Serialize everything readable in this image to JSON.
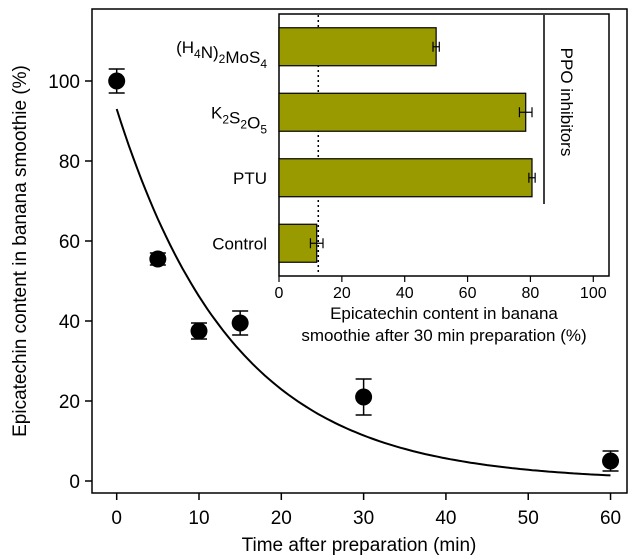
{
  "chart_data": [
    {
      "type": "scatter",
      "xlabel": "Time after preparation (min)",
      "ylabel": "Epicatechin content in banana smoothie (%)",
      "xlim": [
        -3,
        62
      ],
      "ylim": [
        -3,
        118
      ],
      "xticks": [
        0,
        10,
        20,
        30,
        40,
        50,
        60
      ],
      "yticks": [
        0,
        20,
        40,
        60,
        80,
        100
      ],
      "points": [
        {
          "x": 0,
          "y": 100,
          "err": 3
        },
        {
          "x": 5,
          "y": 55.5,
          "err": 1.5
        },
        {
          "x": 10,
          "y": 37.5,
          "err": 2
        },
        {
          "x": 15,
          "y": 39.5,
          "err": 3
        },
        {
          "x": 30,
          "y": 21,
          "err": 4.5
        },
        {
          "x": 60,
          "y": 5,
          "err": 2.5
        }
      ],
      "fit": {
        "kind": "exponential_decay",
        "a": 93,
        "k": 0.07,
        "x_range": [
          0,
          60
        ]
      }
    },
    {
      "type": "bar",
      "orientation": "horizontal",
      "categories": [
        "(H4N)2MoS4",
        "K2S2O5",
        "PTU",
        "Control"
      ],
      "category_labels": [
        [
          {
            "t": "(H"
          },
          {
            "t": "4",
            "sub": true
          },
          {
            "t": "N)"
          },
          {
            "t": "2",
            "sub": true
          },
          {
            "t": "MoS"
          },
          {
            "t": "4",
            "sub": true
          }
        ],
        [
          {
            "t": "K"
          },
          {
            "t": "2",
            "sub": true
          },
          {
            "t": "S"
          },
          {
            "t": "2",
            "sub": true
          },
          {
            "t": "O"
          },
          {
            "t": "5",
            "sub": true
          }
        ],
        [
          {
            "t": "PTU"
          }
        ],
        [
          {
            "t": "Control"
          }
        ]
      ],
      "values": [
        50,
        78.5,
        80.5,
        12
      ],
      "errors": [
        1,
        2,
        1,
        2
      ],
      "xlabel_lines": [
        "Epicatechin content in banana",
        "smoothie after 30 min preparation (%)"
      ],
      "xlim": [
        0,
        105
      ],
      "xticks": [
        0,
        20,
        40,
        60,
        80,
        100
      ],
      "reference_line": 12.5,
      "group_label": "PPO inhibitors",
      "bar_color": "#999900"
    }
  ]
}
